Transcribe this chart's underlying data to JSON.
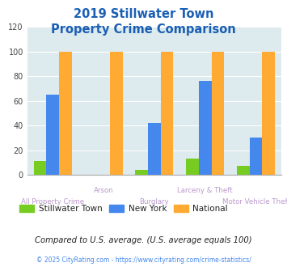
{
  "title_line1": "2019 Stillwater Town",
  "title_line2": "Property Crime Comparison",
  "title_color": "#1a5fb4",
  "categories": [
    "All Property Crime",
    "Arson",
    "Burglary",
    "Larceny & Theft",
    "Motor Vehicle Theft"
  ],
  "stillwater": [
    11,
    0,
    4,
    13,
    7
  ],
  "new_york": [
    65,
    0,
    42,
    76,
    30
  ],
  "national": [
    100,
    100,
    100,
    100,
    100
  ],
  "color_stillwater": "#77cc22",
  "color_new_york": "#4488ee",
  "color_national": "#ffaa33",
  "ylim": [
    0,
    120
  ],
  "yticks": [
    0,
    20,
    40,
    60,
    80,
    100,
    120
  ],
  "bg_color": "#ddeaee",
  "fig_bg": "#ffffff",
  "legend_labels": [
    "Stillwater Town",
    "New York",
    "National"
  ],
  "footnote1": "Compared to U.S. average. (U.S. average equals 100)",
  "footnote2": "© 2025 CityRating.com - https://www.cityrating.com/crime-statistics/",
  "footnote1_color": "#222222",
  "footnote2_color": "#4488ee",
  "xlabel_color": "#bb99cc",
  "bar_width": 0.25
}
